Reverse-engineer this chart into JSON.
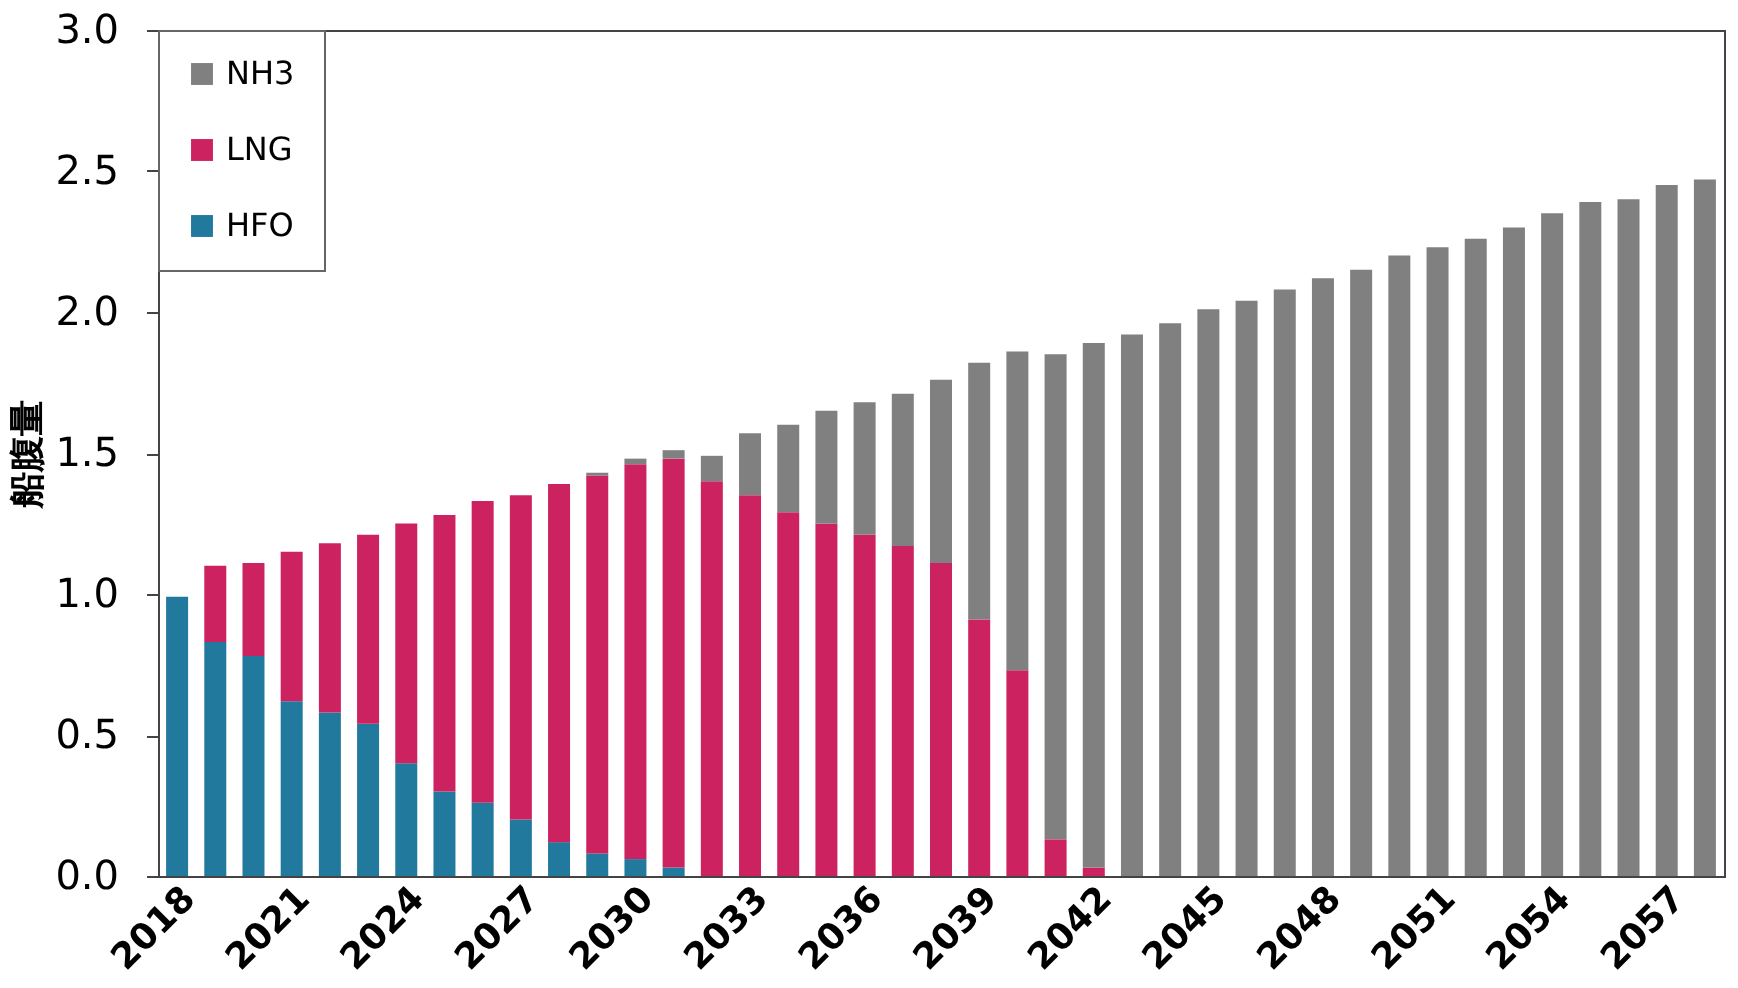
{
  "chart_data": {
    "type": "bar",
    "stacked": true,
    "ylabel": "船腹量",
    "categories": [
      "2018",
      null,
      null,
      "2021",
      null,
      null,
      "2024",
      null,
      null,
      "2027",
      null,
      null,
      "2030",
      null,
      null,
      "2033",
      null,
      null,
      "2036",
      null,
      null,
      "2039",
      null,
      null,
      "2042",
      null,
      null,
      "2045",
      null,
      null,
      "2048",
      null,
      null,
      "2051",
      null,
      null,
      "2054",
      null,
      null,
      "2057",
      null
    ],
    "series": [
      {
        "name": "HFO",
        "color": "#22799e",
        "values": [
          0.99,
          0.83,
          0.78,
          0.62,
          0.58,
          0.54,
          0.4,
          0.3,
          0.26,
          0.2,
          0.12,
          0.08,
          0.06,
          0.03,
          null,
          null,
          null,
          null,
          null,
          null,
          null,
          null,
          null,
          null,
          null,
          null,
          null,
          null,
          null,
          null,
          null,
          null,
          null,
          null,
          null,
          null,
          null,
          null,
          null,
          null,
          null
        ]
      },
      {
        "name": "LNG",
        "color": "#cc2360",
        "values": [
          null,
          0.27,
          0.33,
          0.53,
          0.6,
          0.67,
          0.85,
          0.98,
          1.07,
          1.15,
          1.27,
          1.34,
          1.4,
          1.45,
          1.4,
          1.35,
          1.29,
          1.25,
          1.21,
          1.17,
          1.11,
          0.91,
          0.73,
          0.13,
          0.03,
          null,
          null,
          null,
          null,
          null,
          null,
          null,
          null,
          null,
          null,
          null,
          null,
          null,
          null,
          null,
          null
        ]
      },
      {
        "name": "NH3",
        "color": "#808080",
        "values": [
          null,
          null,
          null,
          null,
          null,
          null,
          null,
          null,
          null,
          null,
          null,
          0.01,
          0.02,
          0.03,
          0.09,
          0.22,
          0.31,
          0.4,
          0.47,
          0.54,
          0.65,
          0.91,
          1.13,
          1.72,
          1.86,
          1.92,
          1.96,
          2.01,
          2.04,
          2.08,
          2.12,
          2.15,
          2.2,
          2.23,
          2.26,
          2.3,
          2.35,
          2.39,
          2.4,
          2.45,
          2.47
        ]
      }
    ],
    "ylim": [
      0,
      3
    ],
    "yticks": [
      {
        "value": 0,
        "label": "0.0"
      },
      0.5,
      {
        "value": 1,
        "label": "1.0"
      },
      1.5,
      {
        "value": 2,
        "label": "2.0"
      },
      2.5,
      {
        "value": 3,
        "label": "3.0"
      }
    ],
    "legend": "top left",
    "grid": false
  }
}
